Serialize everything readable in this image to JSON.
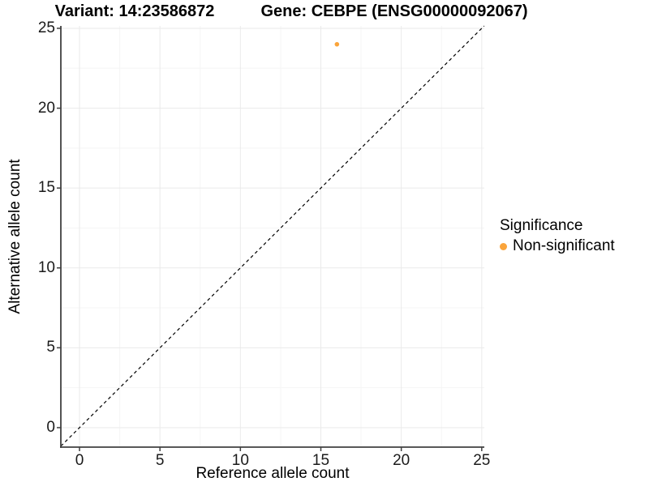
{
  "chart_data": {
    "type": "scatter",
    "title_left": "Variant: 14:23586872",
    "title_right": "Gene: CEBPE (ENSG00000092067)",
    "xlabel": "Reference allele count",
    "ylabel": "Alternative allele count",
    "xticks": [
      0,
      5,
      10,
      15,
      20,
      25
    ],
    "yticks": [
      0,
      5,
      10,
      15,
      20,
      25
    ],
    "xlim": [
      -1.16,
      25.16
    ],
    "ylim": [
      -1.22,
      25.15
    ],
    "minor_interval": 2.5,
    "grid": true,
    "series": [
      {
        "name": "Non-significant",
        "color": "#FAA43B",
        "points": [
          [
            16,
            24
          ]
        ],
        "marker_radius": 2.8
      }
    ],
    "reference_line": {
      "equation": "y = x",
      "style": "dashed",
      "color": "#000000"
    },
    "legend": {
      "title": "Significance",
      "position": "right",
      "items": [
        {
          "label": "Non-significant",
          "color": "#FAA43B"
        }
      ]
    },
    "colors": {
      "background": "#FFFFFF",
      "panel_background": "#FFFFFF",
      "grid_major": "#EAEAEA",
      "grid_minor": "#F5F5F5",
      "axis_line": "#404040",
      "tick_label": "#1a1a1a",
      "title_text": "#000000"
    }
  }
}
